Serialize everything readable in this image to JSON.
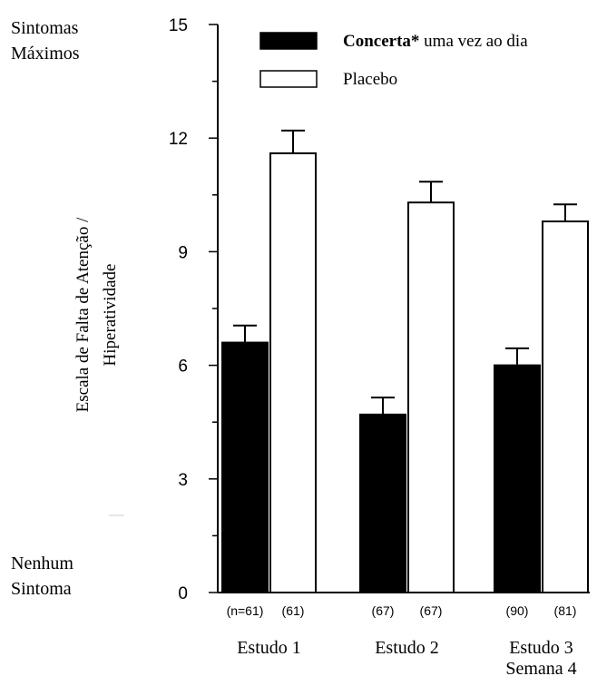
{
  "chart_data": {
    "type": "bar",
    "title": "",
    "top_label_line1": "Sintomas",
    "top_label_line2": "Máximos",
    "bottom_label_line1": "Nenhum",
    "bottom_label_line2": "Sintoma",
    "ylabel_line1": "Escala de Falta de Atenção /",
    "ylabel_line2": "Hiperatividade",
    "ylim": [
      0,
      15
    ],
    "yticks": [
      "0",
      "3",
      "6",
      "9",
      "12",
      "15"
    ],
    "grid": false,
    "legend_placement": "top-right",
    "categories": [
      {
        "line1": "Estudo 1",
        "line2": ""
      },
      {
        "line1": "Estudo 2",
        "line2": ""
      },
      {
        "line1": "Estudo 3",
        "line2": "Semana 4"
      }
    ],
    "series": [
      {
        "name": "Concerta* uma vez ao dia",
        "legend_bold": "Concerta*",
        "legend_rest": " uma vez ao dia",
        "color": "#000000",
        "values": [
          6.6,
          4.7,
          6.0
        ],
        "errors": [
          0.45,
          0.45,
          0.45
        ],
        "n_labels": [
          "(n=61)",
          "(67)",
          "(90)"
        ]
      },
      {
        "name": "Placebo",
        "color": "#ffffff",
        "values": [
          11.6,
          10.3,
          9.8
        ],
        "errors": [
          0.6,
          0.55,
          0.45
        ],
        "n_labels": [
          "(61)",
          "(67)",
          "(81)"
        ]
      }
    ]
  }
}
